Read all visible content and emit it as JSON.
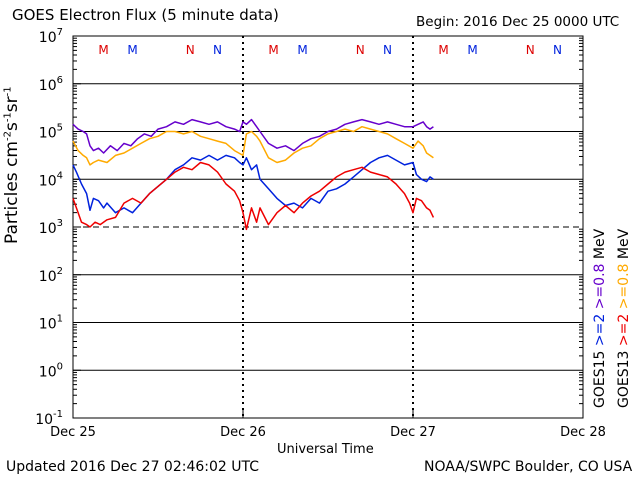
{
  "header": {
    "title": "GOES Electron Flux (5 minute data)",
    "begin": "Begin: 2016 Dec 25 0000 UTC"
  },
  "footer": {
    "updated": "Updated 2016 Dec 27 02:46:02 UTC",
    "credit": "NOAA/SWPC Boulder, CO USA"
  },
  "colors": {
    "goes15_high": "#6600cc",
    "goes13_high": "#ffaa00",
    "goes15_low": "#0022dd",
    "goes13_low": "#ee0000",
    "marker_m": "#dd0000",
    "marker_n": "#0022dd"
  },
  "chart_data": {
    "type": "line",
    "title": "GOES Electron Flux (5 minute data)",
    "xlabel": "Universal Time",
    "ylabel": "Particles cm-2s-1sr-1",
    "x_unit": "days since 2016 Dec 25 0000 UTC",
    "xlim": [
      0,
      3
    ],
    "ylim_log10": [
      -1,
      7
    ],
    "x_ticks": [
      {
        "value": 0,
        "label": "Dec 25"
      },
      {
        "value": 1,
        "label": "Dec 26"
      },
      {
        "value": 2,
        "label": "Dec 27"
      },
      {
        "value": 3,
        "label": "Dec 28"
      }
    ],
    "y_ticks": [
      {
        "value": 7,
        "base": "10",
        "exp": "7"
      },
      {
        "value": 6,
        "base": "10",
        "exp": "6"
      },
      {
        "value": 5,
        "base": "10",
        "exp": "5"
      },
      {
        "value": 4,
        "base": "10",
        "exp": "4"
      },
      {
        "value": 3,
        "base": "10",
        "exp": "3"
      },
      {
        "value": 2,
        "base": "10",
        "exp": "2"
      },
      {
        "value": 1,
        "base": "10",
        "exp": "1"
      },
      {
        "value": 0,
        "base": "10",
        "exp": "0"
      },
      {
        "value": -1,
        "base": "10",
        "exp": "-1"
      }
    ],
    "threshold_log10": 3,
    "markers": [
      {
        "x": 0.18,
        "label": "M",
        "kind": "m"
      },
      {
        "x": 0.35,
        "label": "M",
        "kind": "n"
      },
      {
        "x": 0.69,
        "label": "N",
        "kind": "m"
      },
      {
        "x": 0.85,
        "label": "N",
        "kind": "n"
      },
      {
        "x": 1.18,
        "label": "M",
        "kind": "m"
      },
      {
        "x": 1.35,
        "label": "M",
        "kind": "n"
      },
      {
        "x": 1.69,
        "label": "N",
        "kind": "m"
      },
      {
        "x": 1.85,
        "label": "N",
        "kind": "n"
      },
      {
        "x": 2.18,
        "label": "M",
        "kind": "m"
      },
      {
        "x": 2.35,
        "label": "M",
        "kind": "n"
      },
      {
        "x": 2.69,
        "label": "N",
        "kind": "m"
      },
      {
        "x": 2.85,
        "label": "N",
        "kind": "n"
      }
    ],
    "dashed_verticals": [
      1.0,
      2.0
    ],
    "legend": {
      "goes15_label": "GOES15",
      "goes13_label": "GOES13",
      "goes15_low": ">=2",
      "goes13_low": ">=2",
      "goes15_high": ">=0.8",
      "goes13_high": ">=0.8",
      "unit": "MeV"
    },
    "series": [
      {
        "name": "GOES15 >=0.8 MeV",
        "color": "#6600cc",
        "x": [
          0,
          0.03,
          0.06,
          0.08,
          0.1,
          0.12,
          0.15,
          0.18,
          0.22,
          0.26,
          0.3,
          0.34,
          0.38,
          0.42,
          0.46,
          0.5,
          0.55,
          0.6,
          0.65,
          0.7,
          0.75,
          0.8,
          0.85,
          0.9,
          0.95,
          0.98,
          1.0,
          1.02,
          1.05,
          1.08,
          1.1,
          1.15,
          1.2,
          1.25,
          1.3,
          1.35,
          1.4,
          1.45,
          1.5,
          1.55,
          1.6,
          1.65,
          1.7,
          1.75,
          1.8,
          1.85,
          1.9,
          1.95,
          2.0,
          2.03,
          2.06,
          2.08,
          2.1,
          2.12
        ],
        "y": [
          5.15,
          5.05,
          5.0,
          4.95,
          4.7,
          4.6,
          4.65,
          4.55,
          4.7,
          4.6,
          4.75,
          4.7,
          4.85,
          4.95,
          4.9,
          5.05,
          5.1,
          5.2,
          5.15,
          5.25,
          5.2,
          5.15,
          5.2,
          5.1,
          5.05,
          5.0,
          5.2,
          5.15,
          5.25,
          5.1,
          5.0,
          4.75,
          4.65,
          4.7,
          4.6,
          4.75,
          4.85,
          4.9,
          5.0,
          5.05,
          5.15,
          5.2,
          5.25,
          5.2,
          5.15,
          5.2,
          5.15,
          5.1,
          5.1,
          5.15,
          5.2,
          5.1,
          5.05,
          5.1
        ]
      },
      {
        "name": "GOES13 >=0.8 MeV",
        "color": "#ffaa00",
        "x": [
          0,
          0.03,
          0.06,
          0.08,
          0.1,
          0.12,
          0.15,
          0.2,
          0.25,
          0.3,
          0.35,
          0.4,
          0.45,
          0.5,
          0.55,
          0.6,
          0.65,
          0.7,
          0.75,
          0.8,
          0.85,
          0.9,
          0.95,
          1.0,
          1.02,
          1.05,
          1.08,
          1.1,
          1.15,
          1.2,
          1.25,
          1.3,
          1.35,
          1.4,
          1.45,
          1.5,
          1.55,
          1.6,
          1.65,
          1.7,
          1.75,
          1.8,
          1.85,
          1.9,
          1.95,
          2.0,
          2.03,
          2.06,
          2.08,
          2.1,
          2.12
        ],
        "y": [
          4.8,
          4.6,
          4.5,
          4.45,
          4.3,
          4.35,
          4.4,
          4.35,
          4.5,
          4.55,
          4.65,
          4.75,
          4.85,
          4.9,
          5.0,
          5.0,
          4.95,
          5.0,
          4.9,
          4.85,
          4.8,
          4.75,
          4.6,
          4.5,
          4.95,
          5.0,
          4.9,
          4.8,
          4.45,
          4.35,
          4.4,
          4.55,
          4.65,
          4.7,
          4.85,
          4.95,
          5.0,
          5.05,
          5.0,
          5.1,
          5.05,
          5.0,
          4.95,
          4.85,
          4.75,
          4.65,
          4.8,
          4.7,
          4.55,
          4.5,
          4.45
        ]
      },
      {
        "name": "GOES15 >=2 MeV",
        "color": "#0022dd",
        "x": [
          0,
          0.02,
          0.05,
          0.08,
          0.1,
          0.12,
          0.15,
          0.18,
          0.2,
          0.25,
          0.3,
          0.35,
          0.4,
          0.45,
          0.5,
          0.55,
          0.6,
          0.65,
          0.7,
          0.75,
          0.8,
          0.85,
          0.9,
          0.95,
          0.98,
          1.0,
          1.02,
          1.05,
          1.08,
          1.1,
          1.15,
          1.2,
          1.25,
          1.3,
          1.35,
          1.4,
          1.45,
          1.5,
          1.55,
          1.6,
          1.65,
          1.7,
          1.75,
          1.8,
          1.85,
          1.9,
          1.95,
          2.0,
          2.02,
          2.05,
          2.08,
          2.1,
          2.12
        ],
        "y": [
          4.3,
          4.15,
          3.9,
          3.7,
          3.35,
          3.6,
          3.55,
          3.4,
          3.5,
          3.3,
          3.4,
          3.3,
          3.5,
          3.7,
          3.85,
          4.0,
          4.2,
          4.3,
          4.45,
          4.4,
          4.5,
          4.4,
          4.5,
          4.45,
          4.35,
          4.3,
          4.45,
          4.2,
          4.3,
          4.0,
          3.8,
          3.6,
          3.45,
          3.5,
          3.4,
          3.6,
          3.5,
          3.75,
          3.8,
          3.9,
          4.05,
          4.2,
          4.35,
          4.45,
          4.5,
          4.4,
          4.3,
          4.35,
          4.1,
          4.0,
          3.95,
          4.05,
          4.0
        ]
      },
      {
        "name": "GOES13 >=2 MeV",
        "color": "#ee0000",
        "x": [
          0,
          0.02,
          0.05,
          0.08,
          0.1,
          0.13,
          0.16,
          0.2,
          0.25,
          0.3,
          0.35,
          0.4,
          0.45,
          0.5,
          0.55,
          0.6,
          0.65,
          0.7,
          0.75,
          0.8,
          0.85,
          0.9,
          0.95,
          0.98,
          1.0,
          1.02,
          1.05,
          1.08,
          1.1,
          1.15,
          1.2,
          1.25,
          1.3,
          1.35,
          1.4,
          1.45,
          1.5,
          1.55,
          1.6,
          1.65,
          1.7,
          1.75,
          1.8,
          1.85,
          1.9,
          1.95,
          1.98,
          2.0,
          2.02,
          2.05,
          2.08,
          2.1,
          2.12
        ],
        "y": [
          3.6,
          3.4,
          3.1,
          3.05,
          3.0,
          3.1,
          3.05,
          3.15,
          3.2,
          3.5,
          3.6,
          3.5,
          3.7,
          3.85,
          4.0,
          4.15,
          4.25,
          4.2,
          4.35,
          4.3,
          4.15,
          3.9,
          3.75,
          3.55,
          3.3,
          2.95,
          3.4,
          3.1,
          3.4,
          3.05,
          3.3,
          3.45,
          3.3,
          3.5,
          3.65,
          3.75,
          3.9,
          4.05,
          4.15,
          4.2,
          4.25,
          4.15,
          4.1,
          4.05,
          3.9,
          3.7,
          3.5,
          3.3,
          3.6,
          3.55,
          3.4,
          3.35,
          3.2
        ]
      }
    ]
  }
}
